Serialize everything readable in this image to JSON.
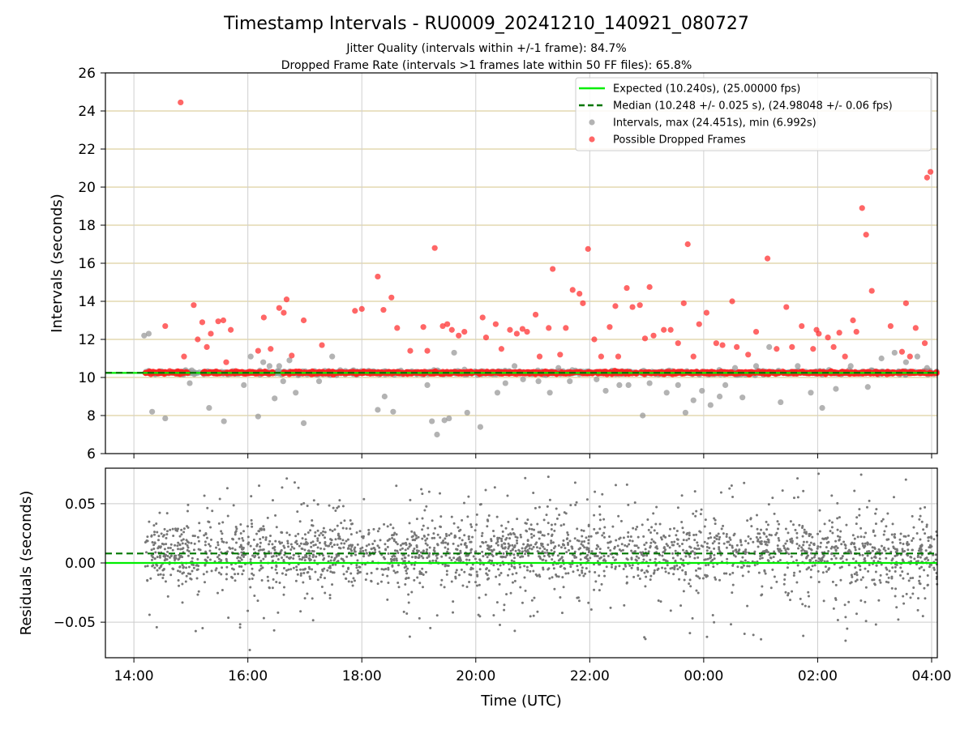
{
  "chart_data": [
    {
      "type": "scatter",
      "title": "Timestamp Intervals - RU0009_20241210_140921_080727",
      "subtitle_lines": [
        "Jitter Quality (intervals within +/-1 frame): 84.7%",
        "Dropped Frame Rate (intervals >1 frames late within 50 FF files): 65.8%"
      ],
      "xlabel": "",
      "ylabel": "Intervals (seconds)",
      "x_unit": "hours since 00:00 on 2024-12-10 (UTC)",
      "xlim": [
        13.5,
        28.1
      ],
      "ylim": [
        6,
        26
      ],
      "yticks": [
        6,
        8,
        10,
        12,
        14,
        16,
        18,
        20,
        22,
        24,
        26
      ],
      "grid": true,
      "legend": {
        "placement": "top-right",
        "entries": [
          {
            "label": "Expected (10.240s), (25.00000 fps)",
            "kind": "line",
            "color": "#00ee00",
            "dash": false
          },
          {
            "label": "Median (10.248 +/- 0.025 s), (24.98048 +/- 0.06 fps)",
            "kind": "line",
            "color": "#007700",
            "dash": true
          },
          {
            "label": "Intervals, max (24.451s), min (6.992s)",
            "kind": "marker",
            "color": "#999999"
          },
          {
            "label": "Possible Dropped Frames",
            "kind": "marker",
            "color": "#ff3333"
          }
        ]
      },
      "expected_line": {
        "y": 10.24,
        "color": "#00ee00"
      },
      "median_line": {
        "y": 10.248,
        "color": "#007700"
      },
      "series": [
        {
          "name": "Intervals, max (24.451s), min (6.992s)",
          "color": "#999999",
          "x": [
            14.18,
            14.26,
            14.32,
            14.55,
            14.98,
            15.32,
            15.58,
            15.93,
            16.05,
            16.18,
            16.27,
            16.38,
            16.47,
            16.55,
            16.62,
            16.73,
            16.84,
            16.98,
            17.25,
            17.48,
            18.28,
            18.4,
            18.55,
            19.15,
            19.23,
            19.32,
            19.45,
            19.53,
            19.62,
            19.85,
            20.08,
            20.38,
            20.52,
            20.68,
            20.83,
            21.1,
            21.3,
            21.45,
            21.65,
            22.12,
            22.28,
            22.52,
            22.68,
            22.93,
            23.05,
            23.35,
            23.55,
            23.68,
            23.82,
            23.97,
            24.12,
            24.28,
            24.38,
            24.55,
            24.68,
            24.92,
            25.15,
            25.35,
            25.65,
            25.88,
            26.08,
            26.32,
            26.58,
            26.88,
            27.12,
            27.35,
            27.55,
            27.75,
            27.92
          ],
          "y": [
            12.2,
            12.3,
            8.2,
            7.85,
            9.7,
            8.4,
            7.7,
            9.6,
            11.1,
            7.95,
            10.8,
            10.6,
            8.9,
            10.6,
            9.8,
            10.9,
            9.2,
            7.6,
            9.8,
            11.1,
            8.3,
            9.0,
            8.2,
            9.6,
            7.7,
            7.0,
            7.75,
            7.85,
            11.3,
            8.15,
            7.4,
            9.2,
            9.7,
            10.6,
            9.9,
            9.8,
            9.2,
            10.5,
            9.8,
            9.9,
            9.3,
            9.6,
            9.6,
            8.0,
            9.7,
            9.2,
            9.6,
            8.15,
            8.8,
            9.3,
            8.55,
            9.0,
            9.6,
            10.5,
            8.95,
            10.6,
            11.6,
            8.7,
            10.6,
            9.2,
            8.4,
            9.4,
            10.6,
            9.5,
            11.0,
            11.3,
            10.8,
            11.1,
            10.5
          ]
        },
        {
          "name": "Possible Dropped Frames",
          "color": "#ff3333",
          "x": [
            14.55,
            14.82,
            14.88,
            15.05,
            15.12,
            15.2,
            15.28,
            15.35,
            15.48,
            15.57,
            15.62,
            15.7,
            16.18,
            16.28,
            16.4,
            16.55,
            16.63,
            16.68,
            16.77,
            16.98,
            17.3,
            17.88,
            18.0,
            18.28,
            18.38,
            18.52,
            18.62,
            18.85,
            19.08,
            19.15,
            19.28,
            19.42,
            19.5,
            19.58,
            19.7,
            19.8,
            20.12,
            20.18,
            20.35,
            20.45,
            20.6,
            20.72,
            20.82,
            20.9,
            21.05,
            21.12,
            21.28,
            21.35,
            21.48,
            21.58,
            21.7,
            21.82,
            21.88,
            21.97,
            22.08,
            22.2,
            22.35,
            22.45,
            22.5,
            22.65,
            22.75,
            22.88,
            22.97,
            23.05,
            23.12,
            23.3,
            23.42,
            23.55,
            23.65,
            23.72,
            23.82,
            23.92,
            24.05,
            24.22,
            24.33,
            24.5,
            24.58,
            24.78,
            24.92,
            25.12,
            25.28,
            25.45,
            25.55,
            25.72,
            25.92,
            25.98,
            26.02,
            26.18,
            26.28,
            26.38,
            26.48,
            26.62,
            26.68,
            26.78,
            26.85,
            26.95,
            27.28,
            27.48,
            27.55,
            27.62,
            27.72,
            27.88,
            27.92,
            27.98
          ],
          "y": [
            12.7,
            24.45,
            11.1,
            13.8,
            12.0,
            12.9,
            11.6,
            12.3,
            12.95,
            13.0,
            10.8,
            12.5,
            11.4,
            13.15,
            11.5,
            13.65,
            13.4,
            14.1,
            11.15,
            13.0,
            11.7,
            13.5,
            13.6,
            15.3,
            13.55,
            14.2,
            12.6,
            11.4,
            12.65,
            11.4,
            16.8,
            12.7,
            12.8,
            12.5,
            12.2,
            12.4,
            13.15,
            12.1,
            12.8,
            11.5,
            12.5,
            12.3,
            12.55,
            12.4,
            13.3,
            11.1,
            12.6,
            15.7,
            11.2,
            12.6,
            14.6,
            14.4,
            13.9,
            16.75,
            12.0,
            11.1,
            12.65,
            13.75,
            11.1,
            14.7,
            13.7,
            13.8,
            12.05,
            14.75,
            12.2,
            12.5,
            12.5,
            11.8,
            13.9,
            17.0,
            11.1,
            12.8,
            13.4,
            11.8,
            11.7,
            14.0,
            11.6,
            11.2,
            12.4,
            16.25,
            11.5,
            13.7,
            11.6,
            12.7,
            11.5,
            12.5,
            12.3,
            12.1,
            11.6,
            12.35,
            11.1,
            13.0,
            12.4,
            18.9,
            17.5,
            14.55,
            12.7,
            11.35,
            13.9,
            11.1,
            12.6,
            11.8,
            20.5,
            20.8
          ]
        }
      ],
      "dense_band": {
        "x_range": [
          14.2,
          28.1
        ],
        "y_center": 10.248
      },
      "dense_sample_x": [
        14.2,
        14.3,
        14.4,
        14.5,
        14.6,
        14.7,
        14.8,
        14.9,
        15.0,
        15.1,
        15.2,
        15.3,
        15.4,
        15.5,
        15.6,
        15.7,
        15.8,
        15.9,
        16.0,
        16.1,
        16.2,
        16.3,
        16.4,
        16.5,
        16.6,
        16.7,
        16.8,
        16.9,
        17.0,
        17.1,
        17.2,
        17.3,
        17.4,
        17.5,
        17.6,
        17.7,
        17.8,
        17.9,
        18.0,
        18.1,
        18.2,
        18.3,
        18.4,
        18.5,
        18.6,
        18.7,
        18.8,
        18.9,
        19.0,
        19.1,
        19.2,
        19.3,
        19.4,
        19.5,
        19.6,
        19.7,
        19.8,
        19.9,
        20.0,
        20.1,
        20.2,
        20.3,
        20.4,
        20.5,
        20.6,
        20.7,
        20.8,
        20.9,
        21.0,
        21.1,
        21.2,
        21.3,
        21.4,
        21.5,
        21.6,
        21.7,
        21.8,
        21.9,
        22.0,
        22.1,
        22.2,
        22.3,
        22.4,
        22.5,
        22.6,
        22.7,
        22.8,
        22.9,
        23.0,
        23.1,
        23.2,
        23.3,
        23.4,
        23.5,
        23.6,
        23.7,
        23.8,
        23.9,
        24.0,
        24.1,
        24.2,
        24.3,
        24.4,
        24.5,
        24.6,
        24.7,
        24.8,
        24.9,
        25.0,
        25.1,
        25.2,
        25.3,
        25.4,
        25.5,
        25.6,
        25.7,
        25.8,
        25.9,
        26.0,
        26.1,
        26.2,
        26.3,
        26.4,
        26.5,
        26.6,
        26.7,
        26.8,
        26.9,
        27.0,
        27.1,
        27.2,
        27.3,
        27.4,
        27.5,
        27.6,
        27.7,
        27.8,
        27.9,
        28.0
      ]
    },
    {
      "type": "scatter",
      "xlabel": "Time (UTC)",
      "ylabel": "Residuals (seconds)",
      "x_unit": "hours since 00:00 on 2024-12-10 (UTC)",
      "xlim": [
        13.5,
        28.1
      ],
      "ylim": [
        -0.08,
        0.08
      ],
      "yticks": [
        -0.05,
        0.0,
        0.05
      ],
      "ytick_labels": [
        "−0.05",
        "0.00",
        "0.05"
      ],
      "xticks": [
        14,
        16,
        18,
        20,
        22,
        24,
        26,
        28
      ],
      "xtick_labels": [
        "14:00",
        "16:00",
        "18:00",
        "20:00",
        "22:00",
        "00:00",
        "02:00",
        "04:00"
      ],
      "grid": true,
      "expected_line": {
        "y": 0.0,
        "color": "#00ee00"
      },
      "median_line": {
        "y": 0.008,
        "color": "#007700"
      },
      "series_color": "#777777",
      "residual_spread": {
        "x_range": [
          14.2,
          28.1
        ],
        "core_sd": 0.012,
        "outlier_sd": 0.03
      }
    }
  ]
}
